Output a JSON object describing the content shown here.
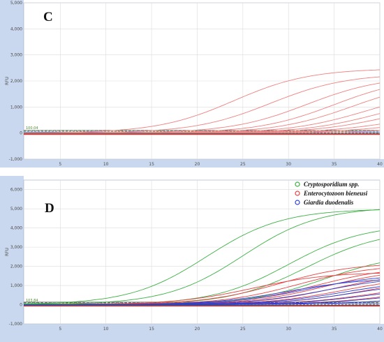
{
  "chart_data": [
    {
      "panel": "C",
      "type": "line",
      "ylabel": "RFU",
      "xlim": [
        1,
        40
      ],
      "ylim": [
        -1000,
        5000
      ],
      "xticks": [
        "5",
        "10",
        "15",
        "20",
        "25",
        "30",
        "35",
        "40"
      ],
      "yticks": [
        "-1,000",
        "0",
        "1,000",
        "2,000",
        "3,000",
        "4,000",
        "5,000"
      ],
      "grid": true,
      "threshold": {
        "label": "100.04",
        "value": 100
      },
      "series_color": "#f08080",
      "curves": [
        {
          "ct": 16,
          "plateau": 2480
        },
        {
          "ct": 20,
          "plateau": 2280
        },
        {
          "ct": 24,
          "plateau": 2200
        },
        {
          "ct": 27,
          "plateau": 2180
        },
        {
          "ct": 29,
          "plateau": 2050
        },
        {
          "ct": 30.5,
          "plateau": 1700
        },
        {
          "ct": 32,
          "plateau": 1500
        },
        {
          "ct": 33,
          "plateau": 1250
        },
        {
          "ct": 34,
          "plateau": 900
        },
        {
          "ct": 35,
          "plateau": 650
        },
        {
          "ct": 36,
          "plateau": 350
        }
      ]
    },
    {
      "panel": "D",
      "type": "line",
      "ylabel": "RFU",
      "xlim": [
        1,
        40
      ],
      "ylim": [
        -1000,
        6500
      ],
      "xticks": [
        "5",
        "10",
        "15",
        "20",
        "25",
        "30",
        "35",
        "40"
      ],
      "yticks": [
        "-1,000",
        "0",
        "1,000",
        "2,000",
        "3,000",
        "4,000",
        "5,000",
        "6,000"
      ],
      "grid": true,
      "threshold": {
        "label": "103.84",
        "value": 100
      },
      "legend_position": "top-right",
      "series": [
        {
          "name": "Cryptosporidium spp.",
          "color": "#3cb043",
          "curves": [
            {
              "ct": 13,
              "plateau": 5000
            },
            {
              "ct": 17,
              "plateau": 5100
            },
            {
              "ct": 22,
              "plateau": 4200
            },
            {
              "ct": 24,
              "plateau": 3900
            },
            {
              "ct": 26,
              "plateau": 2700
            }
          ]
        },
        {
          "name": "Enterocytozoon bieneusi",
          "color": "#e84040",
          "curves": [
            {
              "ct": 18,
              "plateau": 1700
            },
            {
              "ct": 21,
              "plateau": 2200
            },
            {
              "ct": 23,
              "plateau": 2100
            },
            {
              "ct": 25,
              "plateau": 2000
            },
            {
              "ct": 26,
              "plateau": 1900
            },
            {
              "ct": 27,
              "plateau": 1700
            },
            {
              "ct": 28,
              "plateau": 1500
            },
            {
              "ct": 30,
              "plateau": 1400
            },
            {
              "ct": 31,
              "plateau": 1100
            },
            {
              "ct": 33,
              "plateau": 900
            }
          ]
        },
        {
          "name": "Giardia duodenalis",
          "color": "#2b3fd6",
          "curves": [
            {
              "ct": 22,
              "plateau": 1400
            },
            {
              "ct": 24,
              "plateau": 1600
            },
            {
              "ct": 26,
              "plateau": 1500
            },
            {
              "ct": 28,
              "plateau": 1300
            },
            {
              "ct": 29,
              "plateau": 1200
            },
            {
              "ct": 31,
              "plateau": 1000
            },
            {
              "ct": 33,
              "plateau": 800
            },
            {
              "ct": 35,
              "plateau": 600
            }
          ]
        }
      ]
    }
  ]
}
